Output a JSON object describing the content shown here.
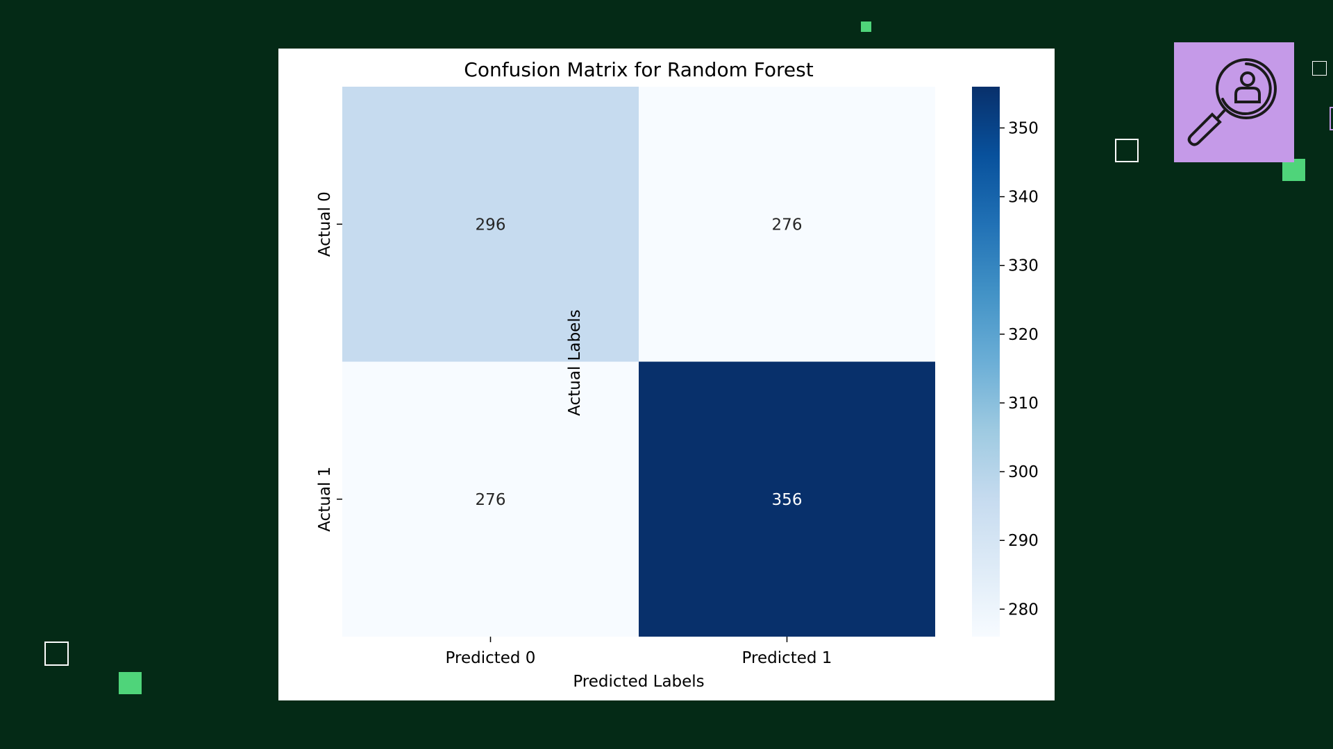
{
  "chart_data": {
    "type": "heatmap",
    "title": "Confusion Matrix for Random Forest",
    "xlabel": "Predicted Labels",
    "ylabel": "Actual Labels",
    "x_categories": [
      "Predicted 0",
      "Predicted 1"
    ],
    "y_categories": [
      "Actual 0",
      "Actual 1"
    ],
    "values": [
      [
        296,
        276
      ],
      [
        276,
        356
      ]
    ],
    "colormap": "Blues",
    "colorbar": {
      "range": [
        276,
        356
      ],
      "ticks": [
        280,
        290,
        300,
        310,
        320,
        330,
        340,
        350
      ],
      "tick_labels": [
        "280",
        "290",
        "300",
        "310",
        "320",
        "330",
        "340",
        "350"
      ]
    },
    "grid": false
  },
  "decorations": {
    "background_color": "#042a16",
    "accent_green": "#4fd47a",
    "badge_color": "#c59ae8",
    "badge_icon": "user-search-icon"
  }
}
